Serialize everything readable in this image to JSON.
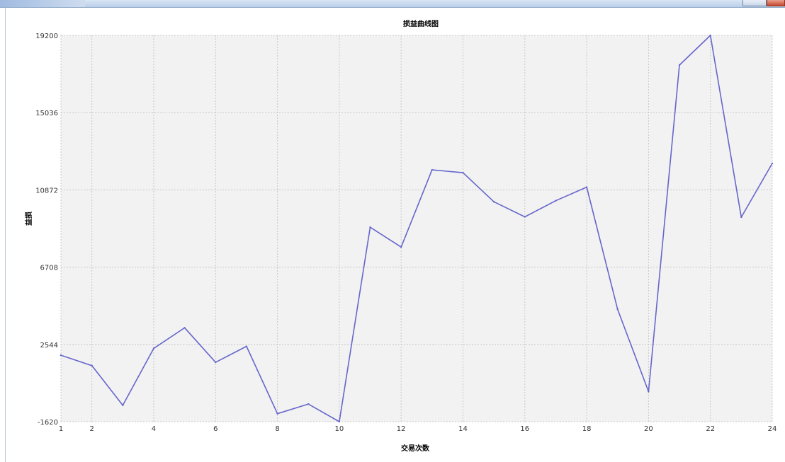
{
  "chart_data": {
    "type": "line",
    "title": "损益曲线图",
    "xlabel": "交易次数",
    "ylabel": "益损",
    "x_ticks": [
      1,
      2,
      4,
      6,
      8,
      10,
      12,
      14,
      16,
      18,
      20,
      22,
      24
    ],
    "y_ticks": [
      -1620,
      2544,
      6708,
      10872,
      15036,
      19200
    ],
    "xlim": [
      1,
      24
    ],
    "ylim": [
      -1620,
      19200
    ],
    "grid": true,
    "legend": false,
    "line_color": "#6666cc",
    "plot_background": "#f2f2f2",
    "series": [
      {
        "x": [
          1,
          2,
          3,
          4,
          5,
          6,
          7,
          8,
          9,
          10,
          11,
          12,
          13,
          14,
          15,
          16,
          17,
          18,
          19,
          20,
          21,
          22,
          23,
          24
        ],
        "values": [
          1960,
          1400,
          -740,
          2330,
          3440,
          1580,
          2440,
          -1190,
          -670,
          -1620,
          8860,
          7790,
          11950,
          11800,
          10230,
          9420,
          10290,
          11020,
          4440,
          0,
          17600,
          19200,
          9400,
          12300
        ]
      }
    ]
  }
}
